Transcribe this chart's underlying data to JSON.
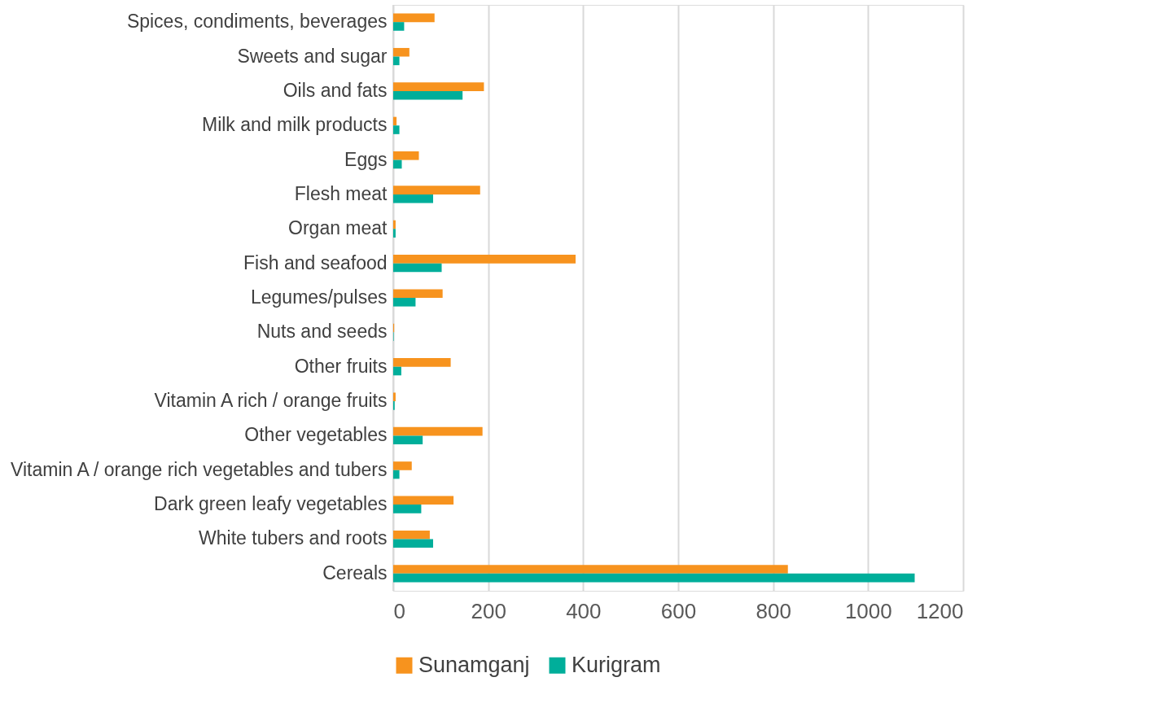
{
  "chart_data": {
    "type": "bar",
    "orientation": "horizontal",
    "categories": [
      "Spices, condiments, beverages",
      "Sweets and sugar",
      "Oils and fats",
      "Milk and milk products",
      "Eggs",
      "Flesh meat",
      "Organ meat",
      "Fish and seafood",
      "Legumes/pulses",
      "Nuts and seeds",
      "Other fruits",
      "Vitamin A rich / orange fruits",
      "Other vegetables",
      "Vitamin A / orange rich vegetables and tubers",
      "Dark green leafy vegetables",
      "White tubers and roots",
      "Cereals"
    ],
    "series": [
      {
        "name": "Sunamganj",
        "color": "#f7931e",
        "values": [
          87,
          34,
          191,
          7,
          54,
          183,
          5,
          384,
          104,
          2,
          121,
          5,
          188,
          39,
          127,
          77,
          831
        ]
      },
      {
        "name": "Kurigram",
        "color": "#00ae9a",
        "values": [
          23,
          13,
          146,
          13,
          18,
          84,
          5,
          102,
          47,
          1,
          17,
          3,
          62,
          13,
          59,
          84,
          1098
        ]
      }
    ],
    "xlim": [
      0,
      1200
    ],
    "xticks": [
      0,
      200,
      400,
      600,
      800,
      1000,
      1200
    ],
    "grid": "x",
    "legend": "bottom"
  }
}
